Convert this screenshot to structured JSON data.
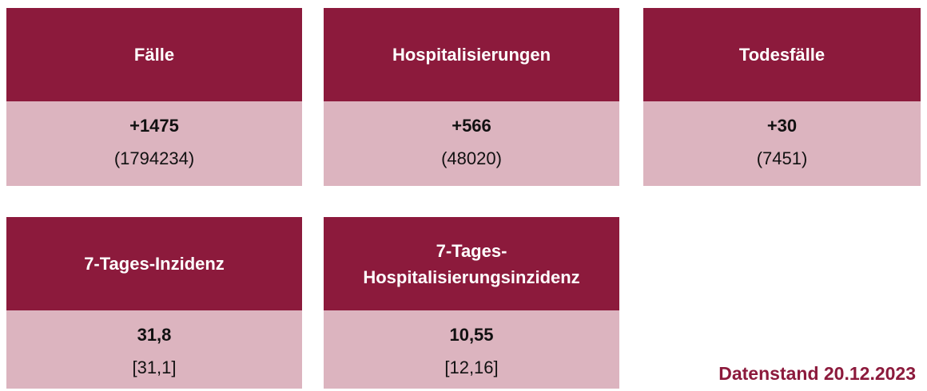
{
  "cards": [
    {
      "title": "Fälle",
      "value": "+1475",
      "detail": "(1794234)"
    },
    {
      "title": "Hospitalisierungen",
      "value": "+566",
      "detail": "(48020)"
    },
    {
      "title": "Todesfälle",
      "value": "+30",
      "detail": "(7451)"
    },
    {
      "title": "7-Tages-Inzidenz",
      "value": "31,8",
      "detail": "[31,1]"
    },
    {
      "title": "7-Tages-Hospitalisierungsinzidenz",
      "value": "10,55",
      "detail": "[12,16]"
    }
  ],
  "footer": {
    "date_label": "Datenstand 20.12.2023"
  }
}
